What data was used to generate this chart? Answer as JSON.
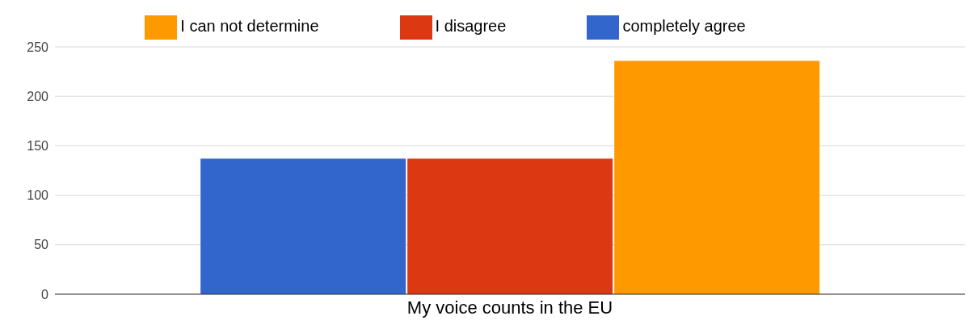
{
  "chart_data": {
    "type": "bar",
    "categories": [
      "My voice counts in the EU"
    ],
    "series": [
      {
        "name": "completely agree",
        "color": "#3366cc",
        "values": [
          137
        ]
      },
      {
        "name": "I disagree",
        "color": "#dc3912",
        "values": [
          137
        ]
      },
      {
        "name": "I can not determine",
        "color": "#ff9900",
        "values": [
          236
        ]
      }
    ],
    "ylim": [
      0,
      250
    ],
    "yticks": [
      0,
      50,
      100,
      150,
      200,
      250
    ],
    "grid": "y",
    "legend": "top"
  }
}
